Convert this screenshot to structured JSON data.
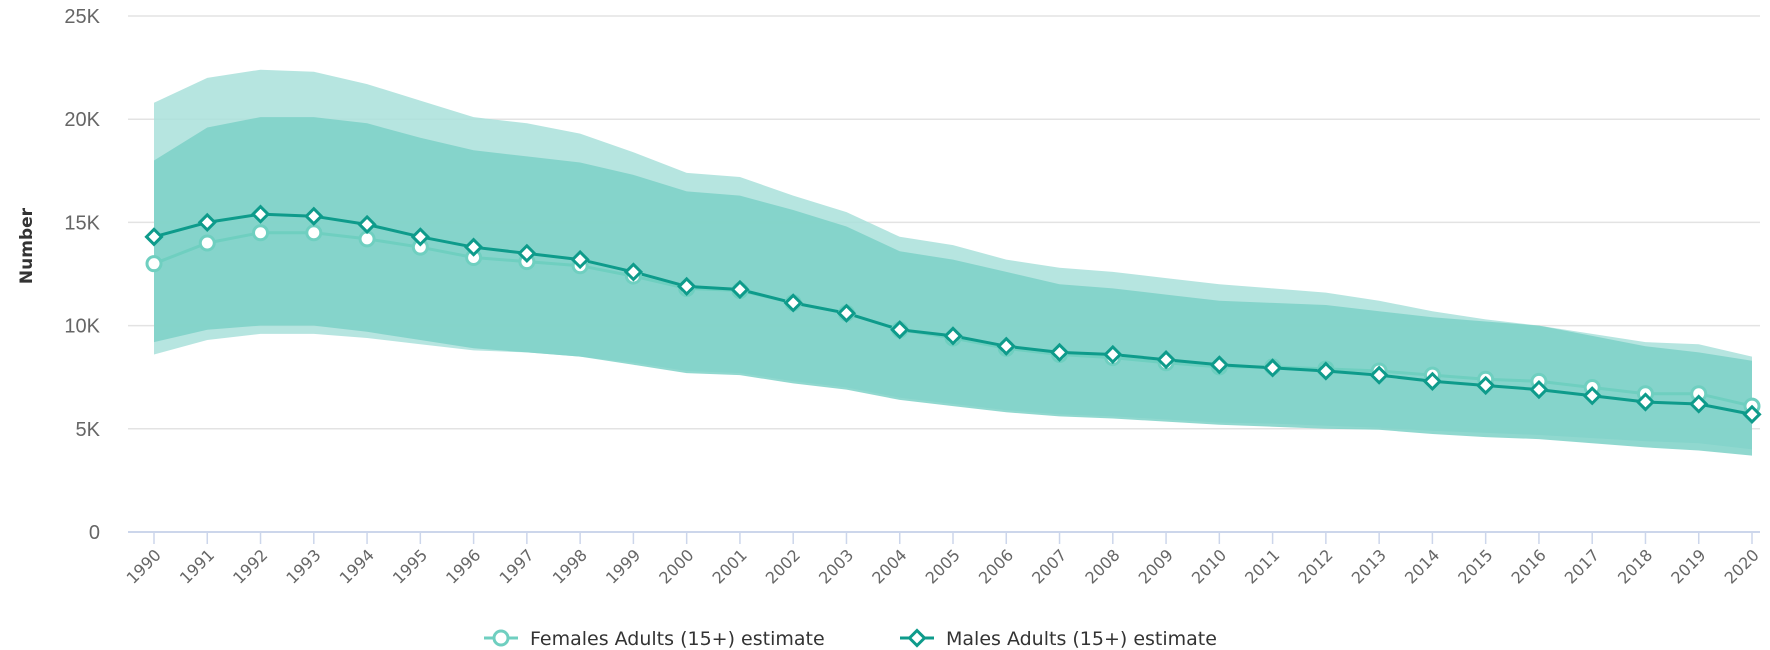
{
  "colors": {
    "female": "#6fcfc0",
    "male": "#0e9b8b",
    "female_band": "#a9e0da",
    "male_band": "#7dd1c7",
    "grid": "#e3e3e3",
    "axis": "#ccd6eb"
  },
  "chart_data": {
    "type": "line",
    "title": "",
    "xlabel": "",
    "ylabel": "Number",
    "ylim": [
      0,
      25000
    ],
    "yticks": [
      0,
      5000,
      10000,
      15000,
      20000,
      25000
    ],
    "ytick_labels": [
      "0",
      "5K",
      "10K",
      "15K",
      "20K",
      "25K"
    ],
    "grid": true,
    "legend_position": "bottom-center",
    "x": [
      1990,
      1991,
      1992,
      1993,
      1994,
      1995,
      1996,
      1997,
      1998,
      1999,
      2000,
      2001,
      2002,
      2003,
      2004,
      2005,
      2006,
      2007,
      2008,
      2009,
      2010,
      2011,
      2012,
      2013,
      2014,
      2015,
      2016,
      2017,
      2018,
      2019,
      2020
    ],
    "series": [
      {
        "name": "Females Adults (15+) estimate",
        "marker": "circle",
        "values": [
          13000,
          14000,
          14500,
          14500,
          14200,
          13800,
          13300,
          13100,
          12900,
          12400,
          11800,
          11700,
          11100,
          10600,
          9800,
          9400,
          8900,
          8600,
          8450,
          8200,
          8000,
          8000,
          7900,
          7800,
          7600,
          7400,
          7300,
          7000,
          6700,
          6700,
          6100
        ],
        "upper": [
          20800,
          22000,
          22400,
          22300,
          21700,
          20900,
          20100,
          19800,
          19300,
          18400,
          17400,
          17200,
          16300,
          15500,
          14300,
          13900,
          13200,
          12800,
          12600,
          12300,
          12000,
          11800,
          11600,
          11200,
          10700,
          10300,
          10000,
          9600,
          9200,
          9100,
          8500
        ],
        "lower": [
          8600,
          9300,
          9600,
          9600,
          9400,
          9100,
          8800,
          8700,
          8500,
          8200,
          7800,
          7700,
          7300,
          7000,
          6500,
          6200,
          5900,
          5700,
          5600,
          5450,
          5300,
          5250,
          5150,
          5050,
          4900,
          4800,
          4700,
          4550,
          4400,
          4300,
          4000
        ]
      },
      {
        "name": "Males Adults (15+) estimate",
        "marker": "diamond",
        "values": [
          14300,
          15000,
          15400,
          15300,
          14900,
          14300,
          13800,
          13500,
          13200,
          12600,
          11900,
          11750,
          11100,
          10600,
          9800,
          9500,
          9000,
          8700,
          8600,
          8350,
          8100,
          7950,
          7800,
          7600,
          7300,
          7100,
          6900,
          6600,
          6300,
          6200,
          5700
        ],
        "upper": [
          18000,
          19600,
          20100,
          20100,
          19800,
          19100,
          18500,
          18200,
          17900,
          17300,
          16500,
          16300,
          15600,
          14800,
          13600,
          13200,
          12600,
          12000,
          11800,
          11500,
          11200,
          11100,
          11000,
          10700,
          10400,
          10200,
          10000,
          9500,
          9000,
          8700,
          8300
        ],
        "lower": [
          9200,
          9800,
          10000,
          10000,
          9700,
          9300,
          8900,
          8700,
          8500,
          8100,
          7700,
          7600,
          7200,
          6900,
          6400,
          6100,
          5800,
          5600,
          5500,
          5350,
          5200,
          5100,
          5000,
          4950,
          4750,
          4600,
          4500,
          4300,
          4100,
          3950,
          3700
        ]
      }
    ]
  }
}
